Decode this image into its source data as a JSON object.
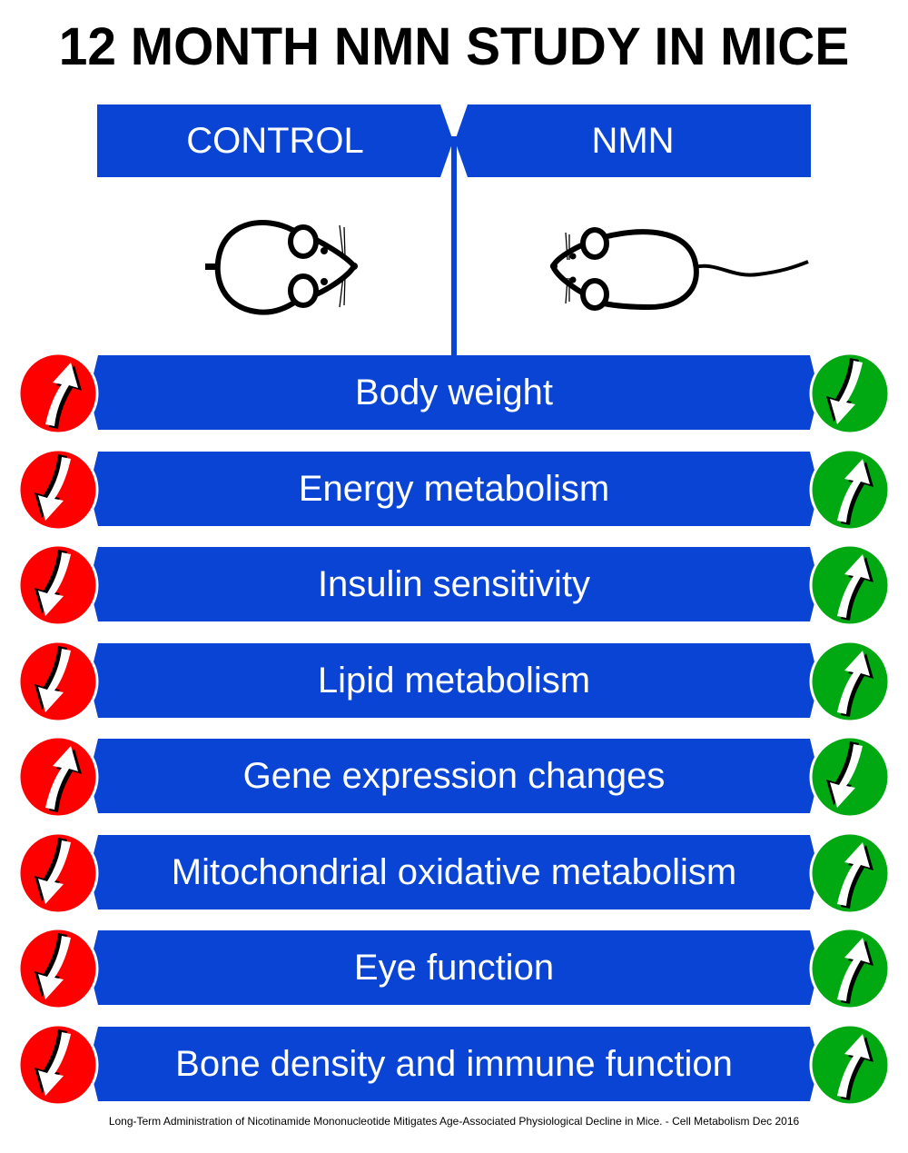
{
  "title": "12 MONTH NMN STUDY IN MICE",
  "groups": {
    "control": "CONTROL",
    "nmn": "NMN"
  },
  "colors": {
    "banner": "#0a44d4",
    "control_badge": "#ff0000",
    "nmn_badge": "#00a812"
  },
  "rows": [
    {
      "label": "Body weight",
      "control": "up",
      "nmn": "down"
    },
    {
      "label": "Energy metabolism",
      "control": "down",
      "nmn": "up"
    },
    {
      "label": "Insulin sensitivity",
      "control": "down",
      "nmn": "up"
    },
    {
      "label": "Lipid metabolism",
      "control": "down",
      "nmn": "up"
    },
    {
      "label": "Gene expression changes",
      "control": "up",
      "nmn": "down"
    },
    {
      "label": "Mitochondrial oxidative metabolism",
      "control": "down",
      "nmn": "up"
    },
    {
      "label": "Eye function",
      "control": "down",
      "nmn": "up"
    },
    {
      "label": "Bone density and immune function",
      "control": "down",
      "nmn": "up"
    }
  ],
  "footer": "Long-Term Administration of Nicotinamide Mononucleotide Mitigates Age-Associated Physiological Decline in Mice. - Cell Metabolism Dec 2016"
}
